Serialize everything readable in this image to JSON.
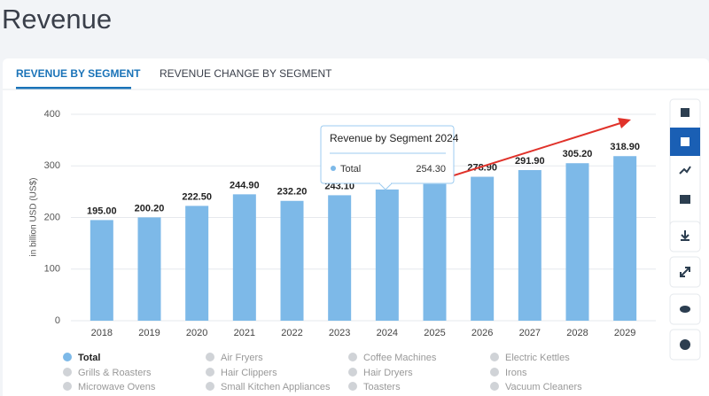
{
  "page": {
    "title": "Revenue",
    "tabs": [
      "REVENUE BY SEGMENT",
      "REVENUE CHANGE BY SEGMENT"
    ]
  },
  "chart_data": {
    "type": "bar",
    "y_label": "in billion USD (US$)",
    "categories": [
      "2018",
      "2019",
      "2020",
      "2021",
      "2022",
      "2023",
      "2024",
      "2025",
      "2026",
      "2027",
      "2028",
      "2029"
    ],
    "series": [
      {
        "name": "Total",
        "color": "#7db9e8",
        "values": [
          195.0,
          200.2,
          222.5,
          244.9,
          232.2,
          243.1,
          254.3,
          265,
          278.9,
          291.9,
          305.2,
          318.9
        ]
      }
    ],
    "value_labels": [
      "195.00",
      "200.20",
      "222.50",
      "244.90",
      "232.20",
      "243.10",
      null,
      null,
      "278.90",
      "291.90",
      "305.20",
      "318.90"
    ],
    "ylim": [
      0,
      400
    ],
    "yticks": [
      0,
      100,
      200,
      300,
      400
    ],
    "grid": true,
    "tooltip": {
      "title": "Revenue by Segment 2024",
      "value": "254.30"
    }
  },
  "inactive_segments": [
    "Air Fryers",
    "Coffee Machines",
    "Electric Kettles",
    "Grills & Roasters",
    "Hair Clippers",
    "Hair Dryers",
    "Irons",
    "Microwave Ovens",
    "Small Kitchen Appliances",
    "Toasters",
    "Vacuum Cleaners"
  ]
}
